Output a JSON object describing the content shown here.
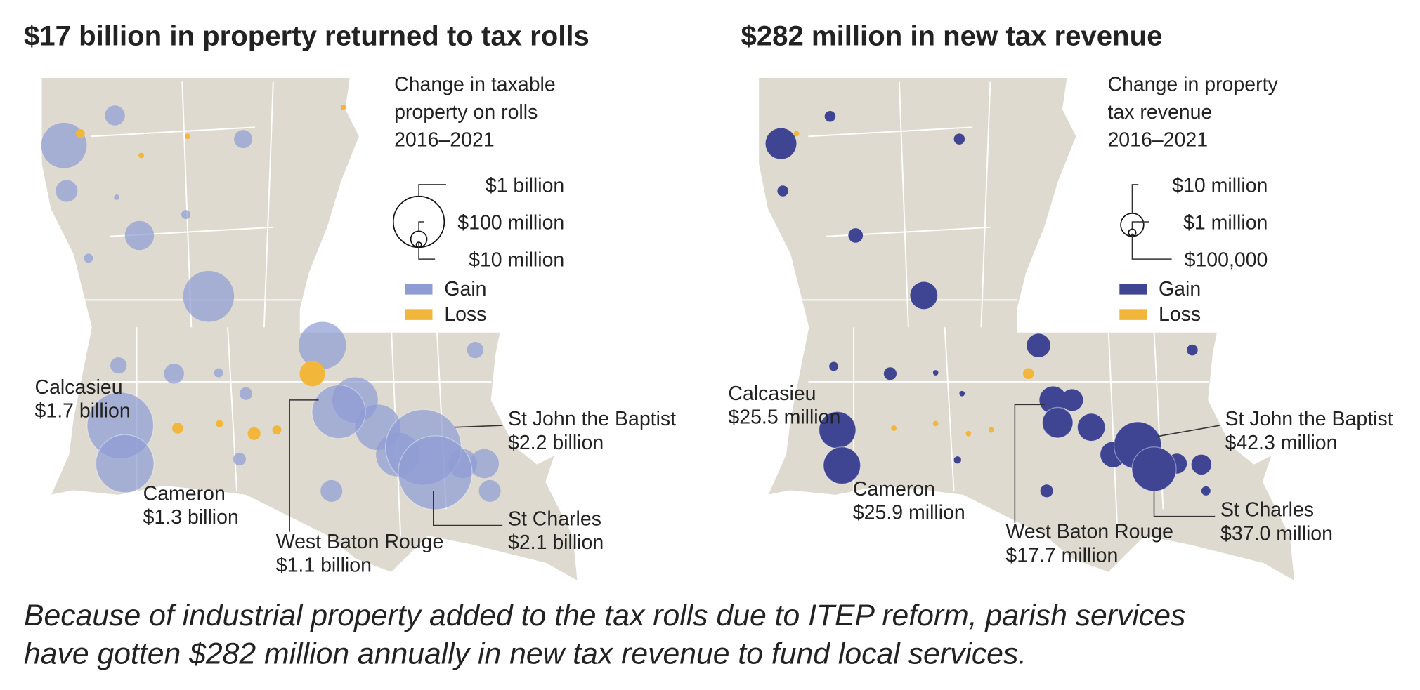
{
  "maps": [
    {
      "title": "$17 billion in property returned to tax rolls",
      "legend_title": [
        "Change in taxable",
        "property on rolls",
        "2016–2021"
      ],
      "size_keys": [
        {
          "value": 1,
          "label": "$1 billion"
        },
        {
          "value": 0.1,
          "label": "$100 million"
        },
        {
          "value": 0.01,
          "label": "$10 million"
        }
      ],
      "legend": [
        {
          "label": "Gain",
          "color": "#8f9cd4"
        },
        {
          "label": "Loss",
          "color": "#f2b63a"
        }
      ],
      "parishes": [
        "Calcasieu",
        "Cameron",
        "West Baton Rouge",
        "St John the Baptist",
        "St Charles"
      ],
      "values": [
        1.7,
        1.3,
        1.1,
        2.2,
        2.1
      ],
      "value_labels": [
        "$1.7 billion",
        "$1.3 billion",
        "$1.1 billion",
        "$2.2 billion",
        "$2.1 billion"
      ]
    },
    {
      "title": "$282 million in new tax revenue",
      "legend_title": [
        "Change in property",
        "tax revenue",
        "2016–2021"
      ],
      "size_keys": [
        {
          "value": 10,
          "label": "$10 million"
        },
        {
          "value": 1,
          "label": "$1 million"
        },
        {
          "value": 0.1,
          "label": "$100,000"
        }
      ],
      "legend": [
        {
          "label": "Gain",
          "color": "#3f4593"
        },
        {
          "label": "Loss",
          "color": "#f2b63a"
        }
      ],
      "parishes": [
        "Calcasieu",
        "Cameron",
        "West Baton Rouge",
        "St John the Baptist",
        "St Charles"
      ],
      "values": [
        25.5,
        25.9,
        17.7,
        42.3,
        37.0
      ],
      "value_labels": [
        "$25.5 million",
        "$25.9 million",
        "$17.7 million",
        "$42.3 million",
        "$37.0 million"
      ]
    }
  ],
  "caption": [
    "Because of industrial property added to the tax rolls due to ITEP reform, parish services",
    "have gotten $282 million annually in new tax revenue to fund local services."
  ]
}
